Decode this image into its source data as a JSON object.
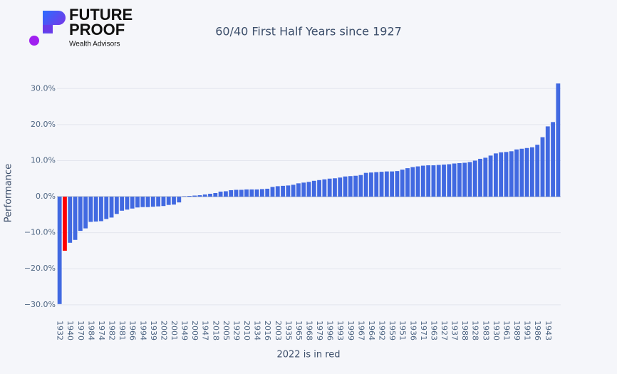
{
  "logo": {
    "line1": "FUTURE",
    "line2": "PROOF",
    "tagline": "Wealth Advisors"
  },
  "chart_data": {
    "type": "bar",
    "title": "60/40 First Half Years since 1927",
    "y_label": "Performance",
    "x_label": "2022 is in red",
    "color": "#4169e1",
    "highlight_color": "#ff0000",
    "highlight_index": 1,
    "grid": true,
    "ylim": [
      -33,
      35
    ],
    "yticks": [
      {
        "value": -30,
        "label": "−30.0%"
      },
      {
        "value": -20,
        "label": "−20.0%"
      },
      {
        "value": -10,
        "label": "−10.0%"
      },
      {
        "value": 0,
        "label": "0.0%"
      },
      {
        "value": 10,
        "label": "10.0%"
      },
      {
        "value": 20,
        "label": "20.0%"
      },
      {
        "value": 30,
        "label": "30.0%"
      }
    ],
    "categories": [
      "1932",
      null,
      "1940",
      null,
      "1970",
      null,
      "1984",
      null,
      "1974",
      null,
      "1982",
      null,
      "1981",
      null,
      "1966",
      null,
      "1994",
      null,
      "1939",
      null,
      "2002",
      null,
      "2001",
      null,
      "1949",
      null,
      "2009",
      null,
      "1947",
      null,
      "2018",
      null,
      "2005",
      null,
      "1929",
      null,
      "2010",
      null,
      "1934",
      null,
      "2016",
      null,
      "2003",
      null,
      "1935",
      null,
      "1965",
      null,
      "1968",
      null,
      "1979",
      null,
      "1996",
      null,
      "1993",
      null,
      "1999",
      null,
      "1967",
      null,
      "1964",
      null,
      "1992",
      null,
      "1959",
      null,
      "1951",
      null,
      "1936",
      null,
      "1971",
      null,
      "1963",
      null,
      "1927",
      null,
      "1937",
      null,
      "1988",
      null,
      "1928",
      null,
      "1983",
      null,
      "1930",
      null,
      "1961",
      null,
      "1989",
      null,
      "1991",
      null,
      "1986",
      null,
      "1943",
      null,
      null
    ],
    "values": [
      -29.8,
      -15.0,
      -12.8,
      -12.0,
      -9.5,
      -8.8,
      -7.0,
      -6.9,
      -6.8,
      -6.2,
      -5.8,
      -4.8,
      -3.9,
      -3.6,
      -3.3,
      -3.0,
      -2.9,
      -2.9,
      -2.8,
      -2.7,
      -2.6,
      -2.3,
      -2.2,
      -1.6,
      0.1,
      0.2,
      0.3,
      0.4,
      0.6,
      0.8,
      1.0,
      1.4,
      1.5,
      1.8,
      1.9,
      1.9,
      2.0,
      2.0,
      2.0,
      2.1,
      2.2,
      2.7,
      2.9,
      3.0,
      3.1,
      3.3,
      3.7,
      3.9,
      4.1,
      4.4,
      4.6,
      4.8,
      5.0,
      5.1,
      5.3,
      5.6,
      5.7,
      5.8,
      6.0,
      6.6,
      6.7,
      6.8,
      6.9,
      7.0,
      7.0,
      7.1,
      7.5,
      7.9,
      8.2,
      8.4,
      8.6,
      8.7,
      8.7,
      8.8,
      8.9,
      9.0,
      9.2,
      9.3,
      9.4,
      9.6,
      10.0,
      10.5,
      10.8,
      11.4,
      12.0,
      12.3,
      12.4,
      12.6,
      13.1,
      13.3,
      13.5,
      13.7,
      14.4,
      16.5,
      19.5,
      20.7,
      31.4
    ]
  }
}
